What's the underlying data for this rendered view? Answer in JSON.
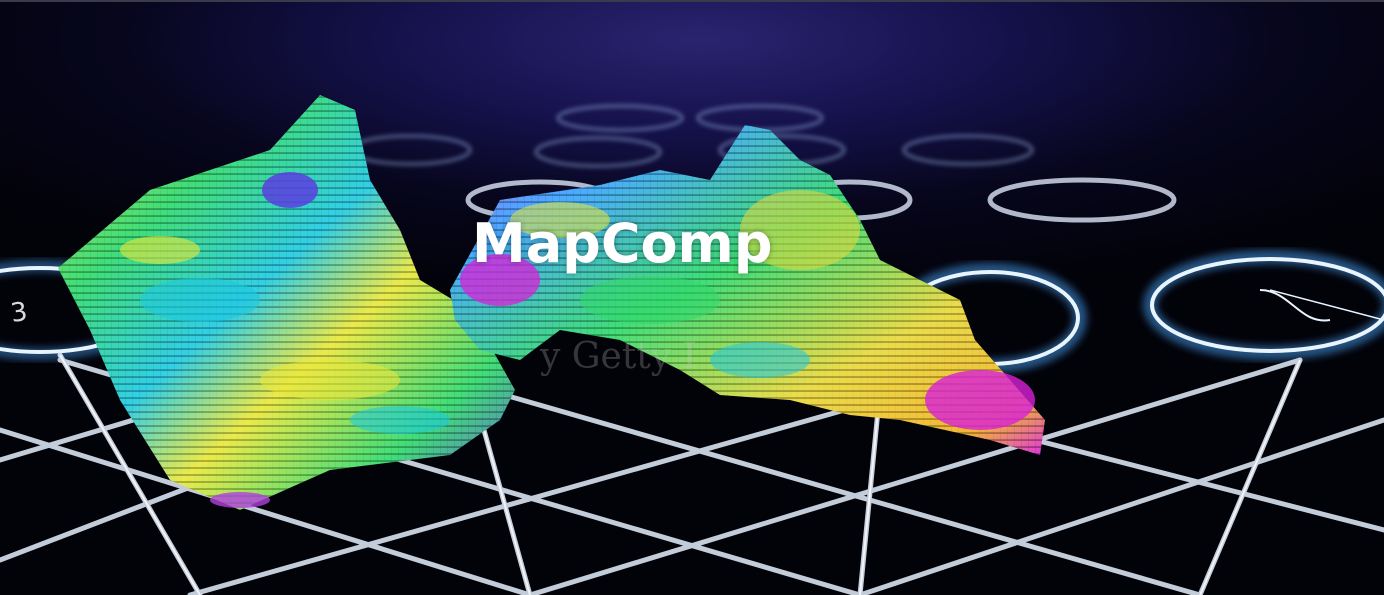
{
  "hero": {
    "title": "MapComp"
  },
  "colors": {
    "background_top": "#2a2470",
    "background_bottom": "#020209",
    "grid_line": "#d8e2f0",
    "ring_glow": "#4aa8ff",
    "title_text": "#ffffff"
  },
  "icons": [
    "3d-voxel-surface-illustration",
    "holographic-ring-icon",
    "grid-floor"
  ]
}
